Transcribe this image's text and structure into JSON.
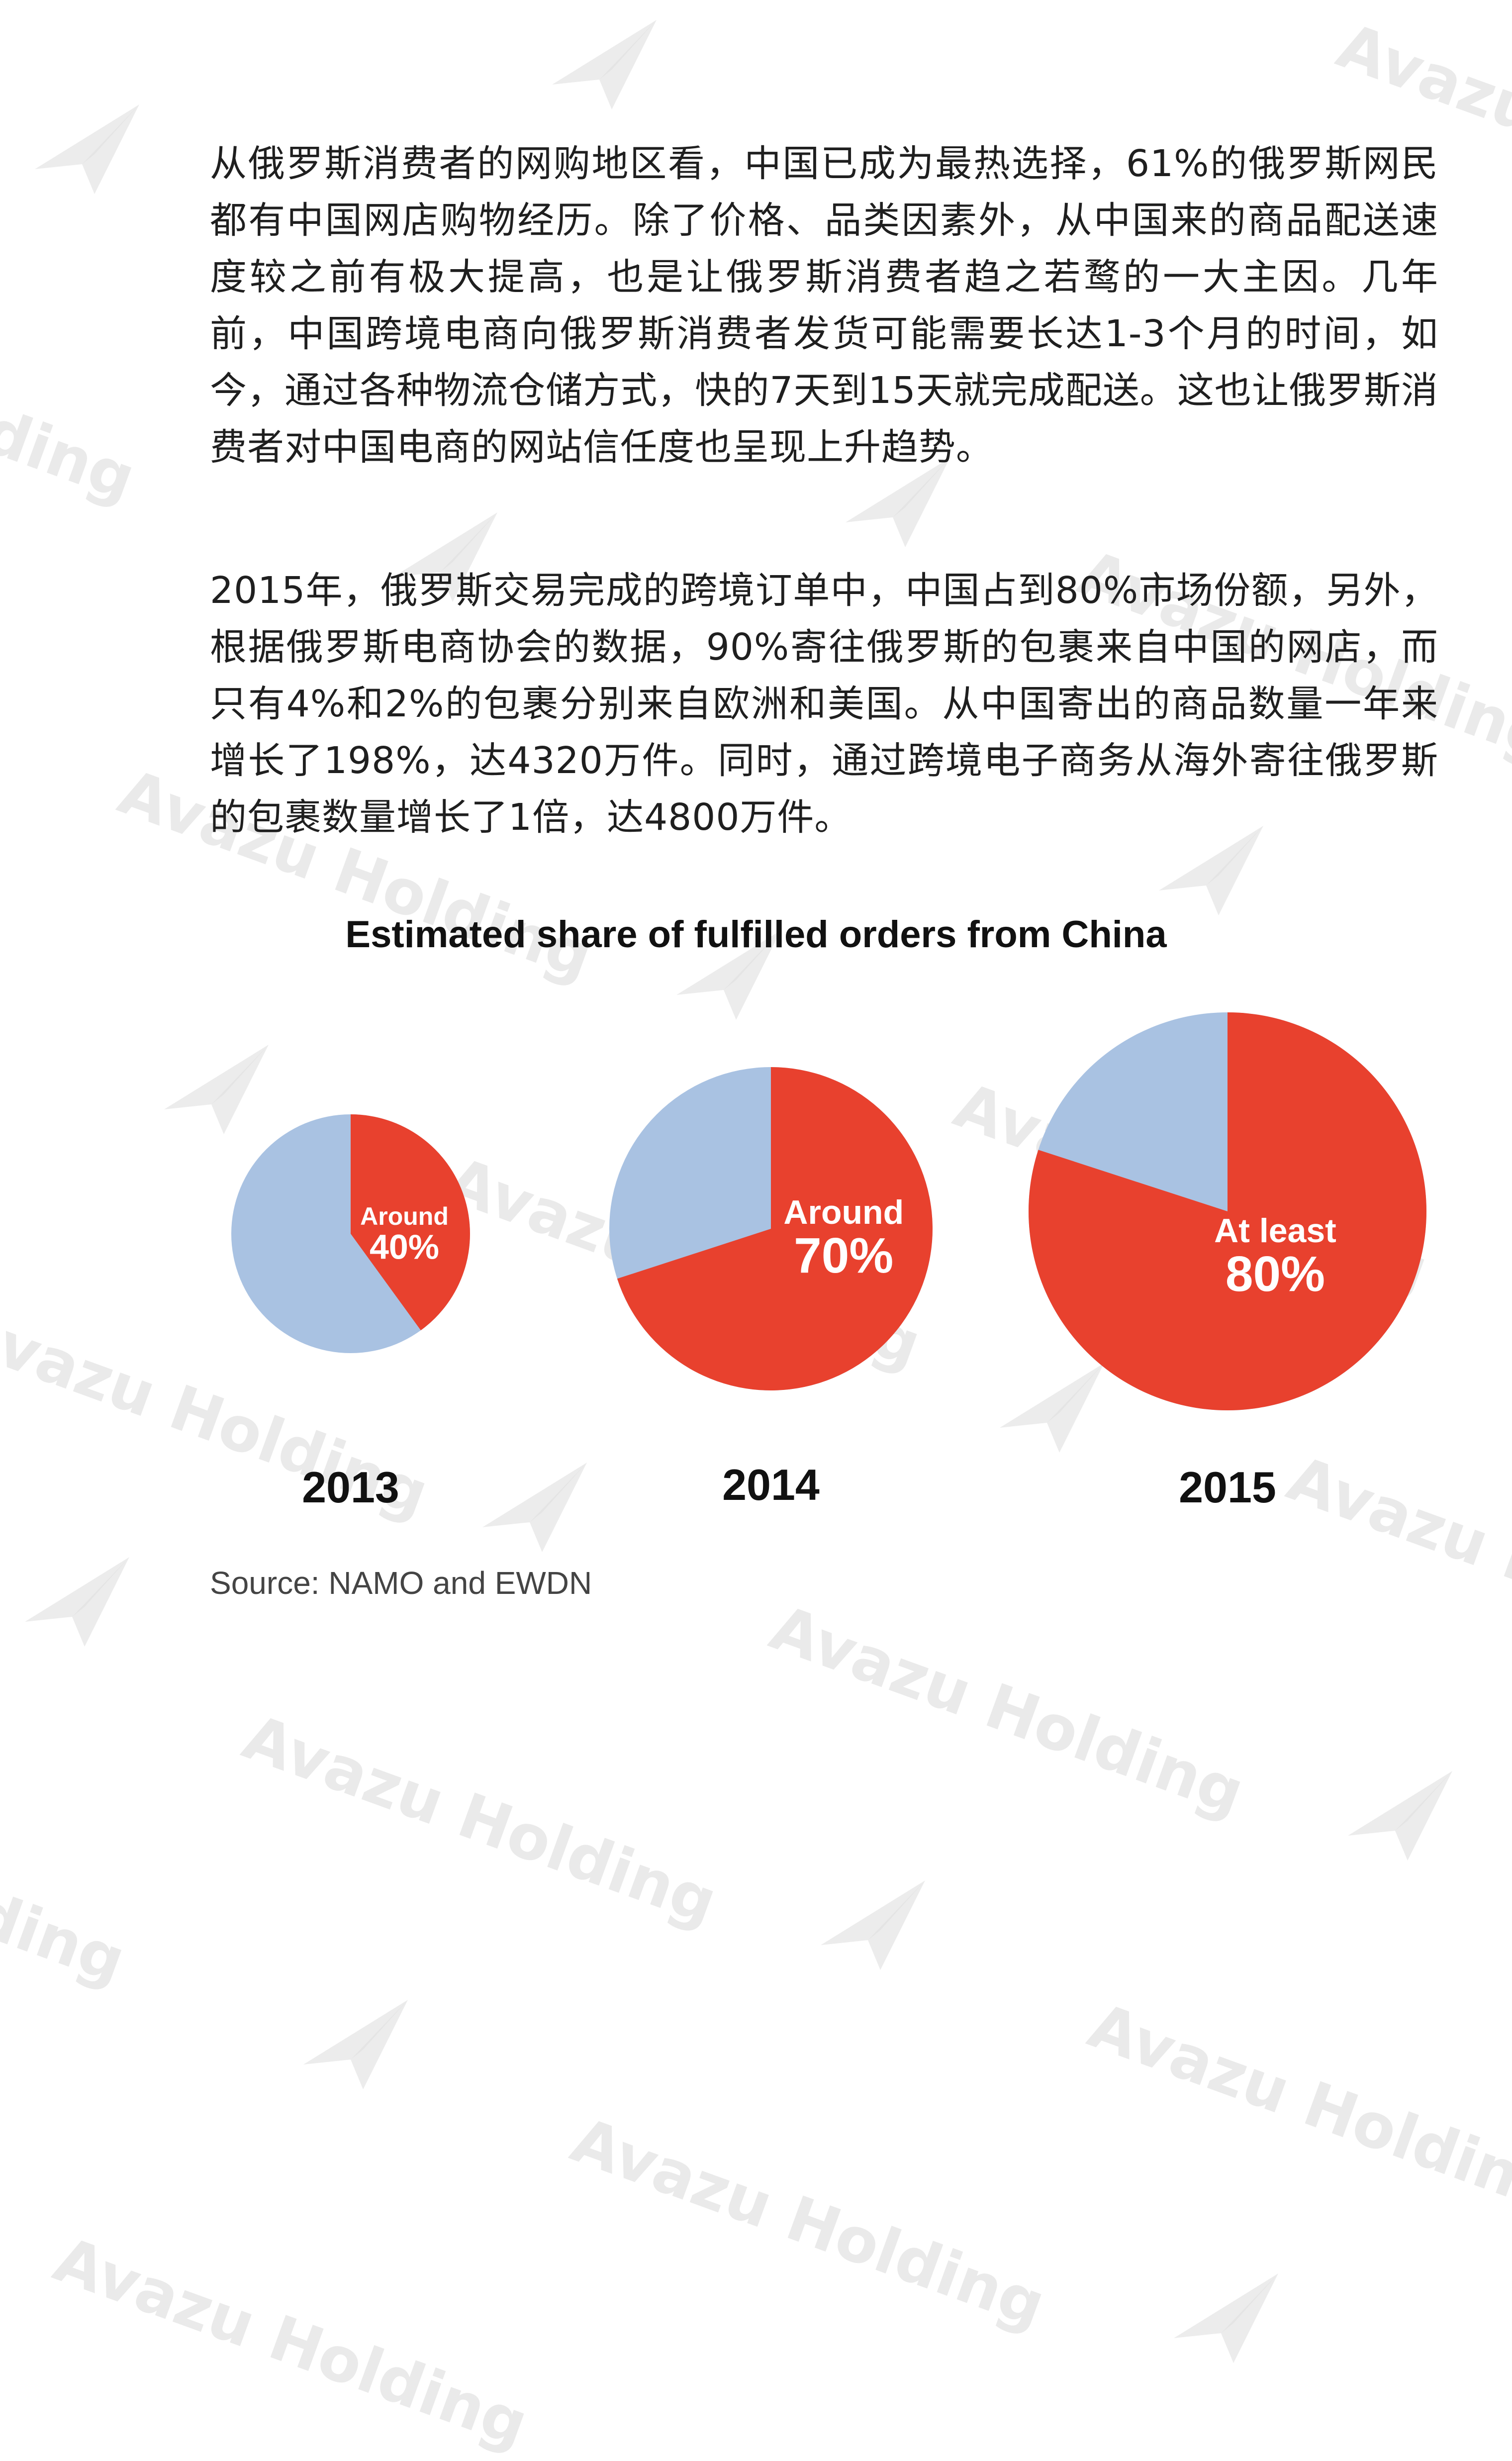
{
  "paragraphs": [
    "从俄罗斯消费者的网购地区看，中国已成为最热选择，61%的俄罗斯网民都有中国网店购物经历。除了价格、品类因素外，从中国来的商品配送速度较之前有极大提高，也是让俄罗斯消费者趋之若鹜的一大主因。几年前，中国跨境电商向俄罗斯消费者发货可能需要长达1-3个月的时间，如今，通过各种物流仓储方式，快的7天到15天就完成配送。这也让俄罗斯消费者对中国电商的网站信任度也呈现上升趋势。",
    "2015年，俄罗斯交易完成的跨境订单中，中国占到80%市场份额，另外，根据俄罗斯电商协会的数据，90%寄往俄罗斯的包裹来自中国的网店，而只有4%和2%的包裹分别来自欧洲和美国。从中国寄出的商品数量一年来增长了198%，达4320万件。同时，通过跨境电子商务从海外寄往俄罗斯的包裹数量增长了1倍，达4800万件。"
  ],
  "watermark": {
    "text": "Avazu Holding",
    "fragment": "lding",
    "icon": "paper-plane-logo-icon"
  },
  "chart_data": {
    "type": "pie",
    "title": "Estimated share of fulfilled orders from China",
    "colors": {
      "china": "#e8412e",
      "other": "#a9c2e2"
    },
    "pies": [
      {
        "year": "2013",
        "value": 40,
        "label_line1": "Around",
        "label_line2": "40%"
      },
      {
        "year": "2014",
        "value": 70,
        "label_line1": "Around",
        "label_line2": "70%"
      },
      {
        "year": "2015",
        "value": 80,
        "label_line1": "At least",
        "label_line2": "80%"
      }
    ]
  },
  "source": "Source: NAMO and EWDN"
}
